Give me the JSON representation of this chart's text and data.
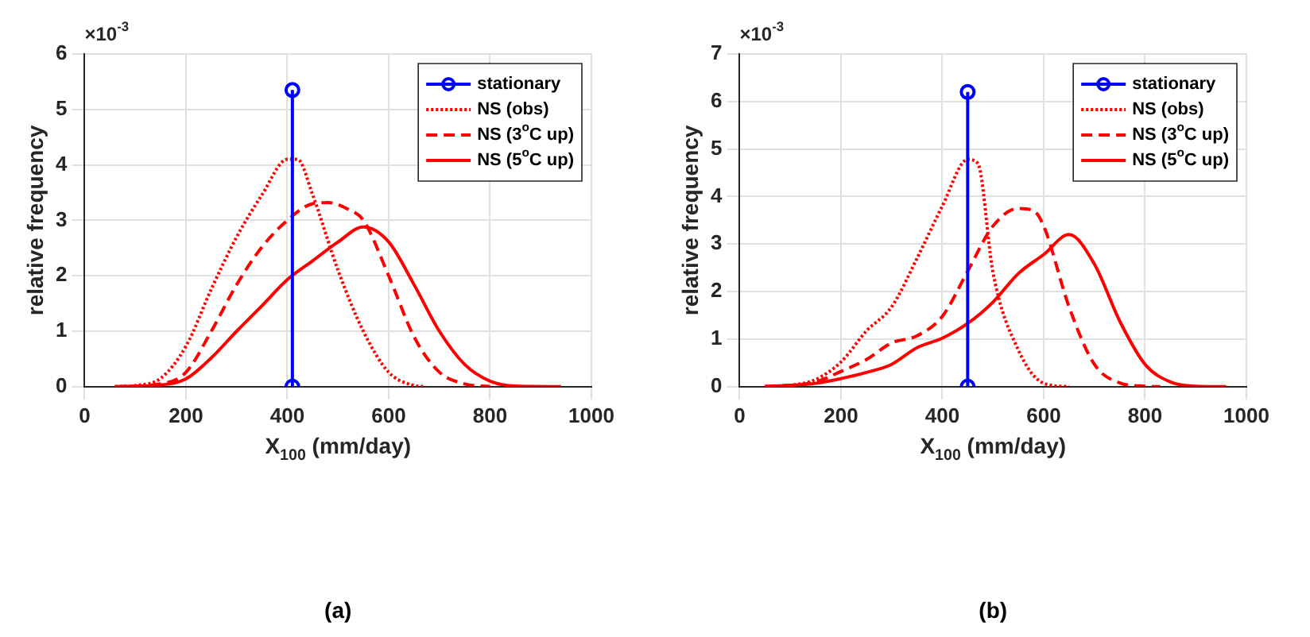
{
  "chart_data": [
    {
      "type": "line",
      "title": "(a)",
      "xlabel": "X$_{100}$ (mm/day)",
      "ylabel": "relative frequency",
      "annotations": [
        "×10$^{-3}$"
      ],
      "xlim": [
        0,
        1000
      ],
      "xticks": [
        0,
        200,
        400,
        600,
        800,
        1000
      ],
      "ylim": [
        0,
        6
      ],
      "yticks": [
        0,
        1,
        2,
        3,
        4,
        5,
        6
      ],
      "grid": true,
      "legend": "top right",
      "series": [
        {
          "name": "stationary",
          "color": "#0000ff",
          "marker": "circle",
          "line_style": "solid",
          "x": [
            410,
            410
          ],
          "values": [
            5.35,
            0
          ]
        },
        {
          "name": "NS (obs)",
          "color": "#ff0000",
          "marker": "none",
          "line_style": "dotted",
          "x": [
            60,
            100,
            150,
            200,
            250,
            300,
            350,
            400,
            420,
            450,
            500,
            550,
            600,
            650,
            670
          ],
          "values": [
            0,
            0.02,
            0.15,
            0.73,
            1.76,
            2.7,
            3.46,
            4.1,
            4.1,
            3.46,
            2.1,
            1.0,
            0.26,
            0.02,
            0
          ]
        },
        {
          "name": "NS (3$^{o}$C up)",
          "color": "#ff0000",
          "marker": "none",
          "line_style": "dashed",
          "x": [
            60,
            150,
            200,
            250,
            300,
            350,
            400,
            450,
            480,
            520,
            550,
            600,
            650,
            700,
            750,
            800
          ],
          "values": [
            0,
            0.05,
            0.26,
            1.0,
            1.84,
            2.52,
            3.0,
            3.3,
            3.32,
            3.2,
            3.0,
            2.0,
            0.9,
            0.26,
            0.05,
            0
          ]
        },
        {
          "name": "NS (5$^{o}$C up)",
          "color": "#ff0000",
          "marker": "none",
          "line_style": "solid",
          "x": [
            60,
            150,
            200,
            250,
            300,
            350,
            400,
            450,
            500,
            550,
            600,
            650,
            700,
            750,
            800,
            850,
            940
          ],
          "values": [
            0,
            0.03,
            0.14,
            0.52,
            1.0,
            1.46,
            1.93,
            2.27,
            2.61,
            2.88,
            2.61,
            1.84,
            1.0,
            0.4,
            0.1,
            0.01,
            0
          ]
        }
      ]
    },
    {
      "type": "line",
      "title": "(b)",
      "xlabel": "X$_{100}$ (mm/day)",
      "ylabel": "relative frequency",
      "annotations": [
        "×10$^{-3}$"
      ],
      "xlim": [
        0,
        1000
      ],
      "xticks": [
        0,
        200,
        400,
        600,
        800,
        1000
      ],
      "ylim": [
        0,
        7
      ],
      "yticks": [
        0,
        1,
        2,
        3,
        4,
        5,
        6,
        7
      ],
      "grid": true,
      "legend": "top right",
      "series": [
        {
          "name": "stationary",
          "color": "#0000ff",
          "marker": "circle",
          "line_style": "solid",
          "x": [
            450,
            450
          ],
          "values": [
            6.2,
            0
          ]
        },
        {
          "name": "NS (obs)",
          "color": "#ff0000",
          "marker": "none",
          "line_style": "dotted",
          "x": [
            50,
            100,
            150,
            200,
            250,
            300,
            350,
            400,
            450,
            470,
            500,
            550,
            600,
            650
          ],
          "values": [
            0,
            0.03,
            0.15,
            0.52,
            1.17,
            1.68,
            2.7,
            3.8,
            4.78,
            4.7,
            2.4,
            0.77,
            0.07,
            0
          ]
        },
        {
          "name": "NS (3$^{o}$C up)",
          "color": "#ff0000",
          "marker": "none",
          "line_style": "dashed",
          "x": [
            50,
            150,
            200,
            250,
            300,
            350,
            400,
            450,
            500,
            550,
            580,
            600,
            650,
            700,
            750,
            800,
            830
          ],
          "values": [
            0,
            0.1,
            0.32,
            0.57,
            0.92,
            1.07,
            1.48,
            2.43,
            3.38,
            3.75,
            3.7,
            3.38,
            1.68,
            0.47,
            0.08,
            0.01,
            0
          ]
        },
        {
          "name": "NS (5$^{o}$C up)",
          "color": "#ff0000",
          "marker": "none",
          "line_style": "solid",
          "x": [
            50,
            150,
            200,
            250,
            300,
            350,
            400,
            450,
            500,
            550,
            600,
            650,
            700,
            750,
            800,
            850,
            900,
            960
          ],
          "values": [
            0,
            0.07,
            0.17,
            0.3,
            0.47,
            0.82,
            1.02,
            1.33,
            1.78,
            2.38,
            2.78,
            3.2,
            2.58,
            1.38,
            0.47,
            0.1,
            0.01,
            0
          ]
        }
      ]
    }
  ]
}
